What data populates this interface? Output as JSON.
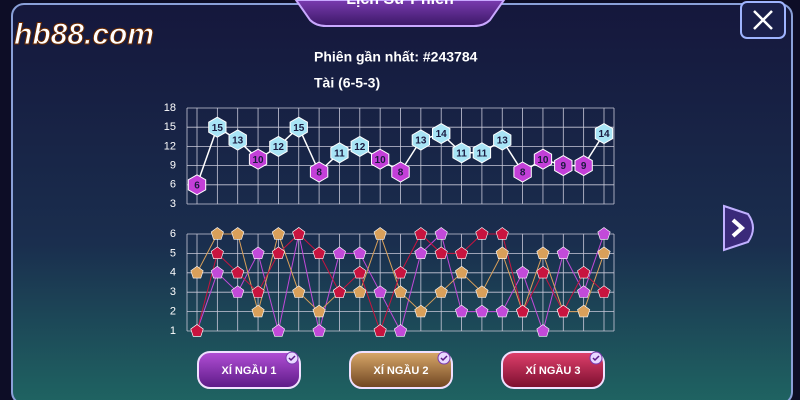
{
  "logo": "hb88.com",
  "header": {
    "title": "Lịch Sử Phiên"
  },
  "session": {
    "latest": "Phiên gần nhất: #243784",
    "result": "Tài (6-5-3)"
  },
  "chart_data": [
    {
      "type": "line",
      "line_color": "#ffffff",
      "values": [
        6,
        15,
        13,
        10,
        12,
        15,
        8,
        11,
        12,
        10,
        8,
        13,
        14,
        11,
        11,
        13,
        8,
        10,
        9,
        9,
        14
      ],
      "marker_colors": [
        "#c33fd8",
        "#a8e4f5",
        "#a8e4f5",
        "#c33fd8",
        "#a8e4f5",
        "#a8e4f5",
        "#c33fd8",
        "#a8e4f5",
        "#a8e4f5",
        "#c33fd8",
        "#c33fd8",
        "#a8e4f5",
        "#a8e4f5",
        "#a8e4f5",
        "#a8e4f5",
        "#a8e4f5",
        "#c33fd8",
        "#c33fd8",
        "#c33fd8",
        "#c33fd8",
        "#a8e4f5"
      ],
      "ylim": [
        3,
        18
      ],
      "yticks": [
        3,
        6,
        9,
        12,
        15,
        18
      ],
      "grid": true
    },
    {
      "type": "line",
      "series": [
        {
          "name": "XÍ NGẦU 1",
          "color": "#c24ad9",
          "values": [
            1,
            4,
            3,
            5,
            1,
            6,
            1,
            5,
            5,
            3,
            1,
            5,
            6,
            2,
            2,
            2,
            4,
            1,
            5,
            3,
            6
          ]
        },
        {
          "name": "XÍ NGẦU 2",
          "color": "#d9a05a",
          "values": [
            4,
            6,
            6,
            2,
            6,
            3,
            2,
            3,
            3,
            6,
            3,
            2,
            3,
            4,
            3,
            5,
            2,
            5,
            2,
            2,
            5
          ]
        },
        {
          "name": "XÍ NGẦU 3",
          "color": "#c8143f",
          "values": [
            1,
            5,
            4,
            3,
            5,
            6,
            5,
            3,
            4,
            1,
            4,
            6,
            5,
            5,
            6,
            6,
            2,
            4,
            2,
            4,
            3
          ]
        }
      ],
      "ylim": [
        1,
        6
      ],
      "yticks": [
        1,
        2,
        3,
        4,
        5,
        6
      ],
      "grid": true
    }
  ]
}
